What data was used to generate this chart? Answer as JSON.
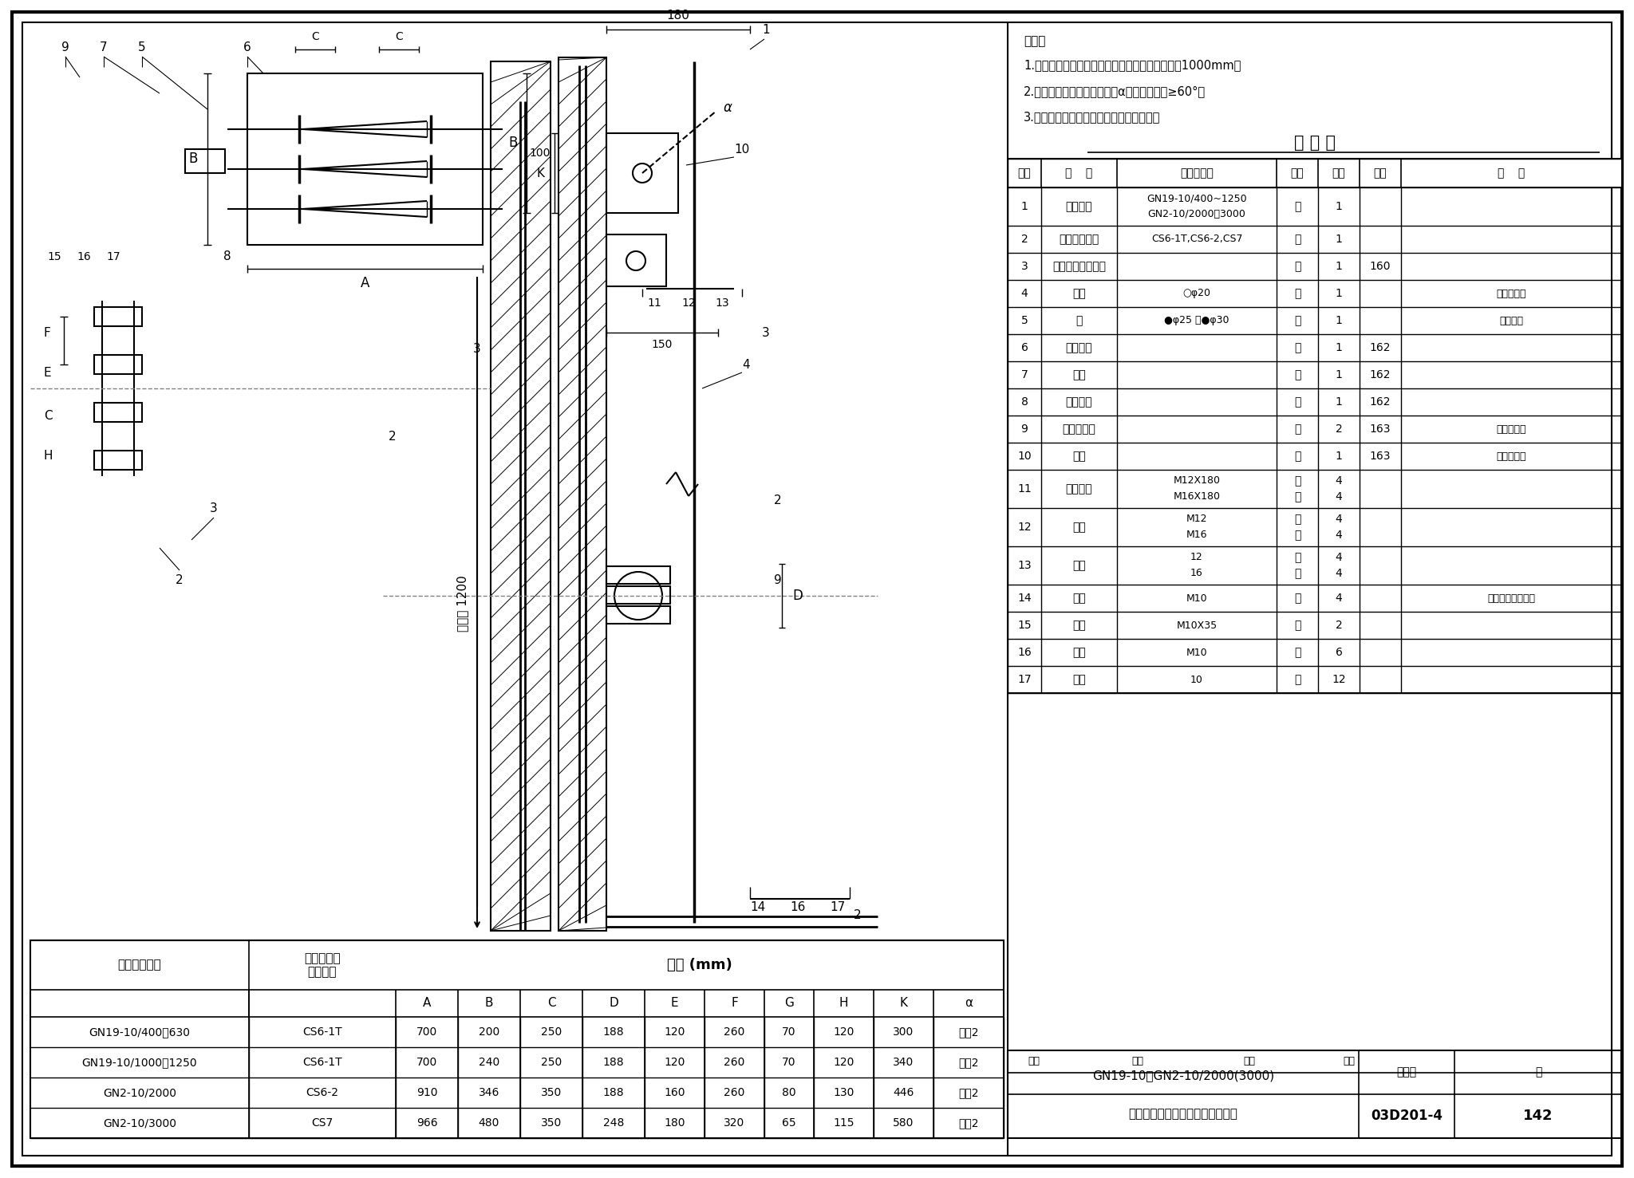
{
  "notes": [
    "说明：",
    "1.轴延长需增加轴承时，两个轴承间的距离应小于1000mm。",
    "2.隔离开关刀片打开时，角度α应使开口角度≥60°。",
    "3.操动机构也可以安装在隔离开关的左侧。"
  ],
  "table_title": "明 细 表",
  "table_headers": [
    "序号",
    "名    称",
    "型号及规格",
    "单位",
    "数量",
    "页次",
    "备    注"
  ],
  "table_rows": [
    [
      "1",
      "隔离开关",
      "GN19-10/400~1250\nGN2-10/2000、3000",
      "台",
      "1",
      "",
      ""
    ],
    [
      "2",
      "手力操动机构",
      "CS6-1T,CS6-2,CS7",
      "台",
      "1",
      "",
      ""
    ],
    [
      "3",
      "操作机构安装支架",
      "",
      "个",
      "1",
      "160",
      ""
    ],
    [
      "4",
      "拉杆",
      "○φ20",
      "根",
      "1",
      "",
      "长度由工程"
    ],
    [
      "5",
      "轴",
      "●φ25 或●φ30",
      "根",
      "1",
      "",
      "设计决定"
    ],
    [
      "6",
      "轴连接套",
      "",
      "根",
      "1",
      "162",
      ""
    ],
    [
      "7",
      "轴承",
      "",
      "根",
      "1",
      "162",
      ""
    ],
    [
      "8",
      "轴承支架",
      "",
      "根",
      "1",
      "162",
      ""
    ],
    [
      "9",
      "直叉型接头",
      "",
      "个",
      "2",
      "163",
      "可随隔离开"
    ],
    [
      "10",
      "轴臂",
      "",
      "个",
      "1",
      "163",
      "关成套供应"
    ],
    [
      "11",
      "开尾螺栓",
      "M12X180\nM16X180",
      "个\n个",
      "4\n4",
      "",
      ""
    ],
    [
      "12",
      "螺母",
      "M12\nM16",
      "个\n个",
      "4\n4",
      "",
      ""
    ],
    [
      "13",
      "垫圈",
      "12\n16",
      "个\n个",
      "4\n4",
      "",
      ""
    ],
    [
      "14",
      "螺栓",
      "M10",
      "个",
      "4",
      "",
      "长度根据壁厚决定"
    ],
    [
      "15",
      "螺栓",
      "M10X35",
      "个",
      "2",
      "",
      ""
    ],
    [
      "16",
      "螺母",
      "M10",
      "个",
      "6",
      "",
      ""
    ],
    [
      "17",
      "垫圈",
      "10",
      "个",
      "12",
      "",
      ""
    ]
  ],
  "bottom_title1": "GN19-10、GN2-10/2000(3000)",
  "bottom_title2": "隔离开关在墙上安装（墙后操作）",
  "atlas_label": "图集号",
  "atlas_number": "03D201-4",
  "page_label": "页",
  "page_number": "142",
  "sig_row": "审核                校对                设计                审定",
  "dim_table_col0_label": "隔离开关型号",
  "dim_table_col1_label": "配用手力操\n动机型号",
  "dim_table_span_label": "尺寸 (mm)",
  "dim_table_sub_labels": [
    "A",
    "B",
    "C",
    "D",
    "E",
    "F",
    "G",
    "H",
    "K",
    "α"
  ],
  "dim_table_rows": [
    [
      "GN19-10/400、630",
      "CS6-1T",
      "700",
      "200",
      "250",
      "188",
      "120",
      "260",
      "70",
      "120",
      "300",
      "说明2"
    ],
    [
      "GN19-10/1000、1250",
      "CS6-1T",
      "700",
      "240",
      "250",
      "188",
      "120",
      "260",
      "70",
      "120",
      "340",
      "说明2"
    ],
    [
      "GN2-10/2000",
      "CS6-2",
      "910",
      "346",
      "350",
      "188",
      "160",
      "260",
      "80",
      "130",
      "446",
      "说明2"
    ],
    [
      "GN2-10/3000",
      "CS7",
      "966",
      "480",
      "350",
      "248",
      "180",
      "320",
      "65",
      "115",
      "580",
      "说明2"
    ]
  ]
}
